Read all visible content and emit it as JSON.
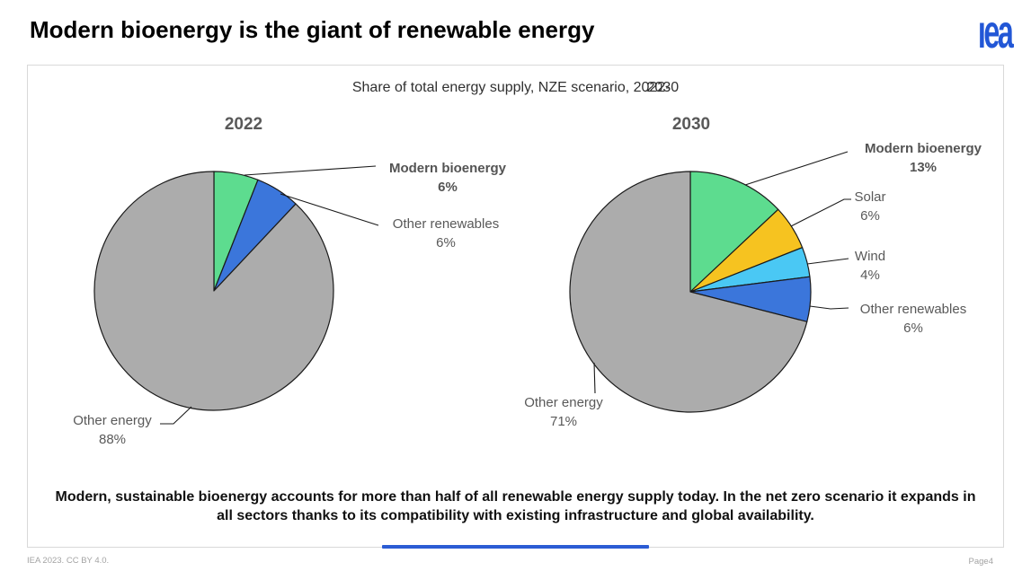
{
  "header": {
    "title": "Modern bioenergy is the giant of renewable energy",
    "logo_text": "ıea"
  },
  "chart": {
    "subtitle_part1": "Share of total energy supply, NZE scenario, 2022-",
    "subtitle_part2": "2030",
    "subtitle_full": "Share of total energy supply, NZE scenario, 2022-2030",
    "message_line1": "Modern, sustainable bioenergy accounts for more than half of all renewable energy supply today. In the net zero",
    "message_line2": "scenario it expands in all sectors thanks to its compatibility with existing infrastructure and global availability."
  },
  "chart_data": [
    {
      "type": "pie",
      "title": "2022",
      "start_angle": "12-oclock",
      "direction": "clockwise",
      "labels_position": "outside-with-leader-lines",
      "slices": [
        {
          "label": "Modern bioenergy",
          "pct_label": "6%",
          "value": 6,
          "color": "#5dDC8f",
          "emphasis": true
        },
        {
          "label": "Other renewables",
          "pct_label": "6%",
          "value": 6,
          "color": "#3b76db",
          "emphasis": false
        },
        {
          "label": "Other energy",
          "pct_label": "88%",
          "value": 88,
          "color": "#acacac",
          "emphasis": false
        }
      ]
    },
    {
      "type": "pie",
      "title": "2030",
      "start_angle": "12-oclock",
      "direction": "clockwise",
      "labels_position": "outside-with-leader-lines",
      "slices": [
        {
          "label": "Modern bioenergy",
          "pct_label": "13%",
          "value": 13,
          "color": "#5dDC8f",
          "emphasis": true
        },
        {
          "label": "Solar",
          "pct_label": "6%",
          "value": 6,
          "color": "#f6c320",
          "emphasis": false
        },
        {
          "label": "Wind",
          "pct_label": "4%",
          "value": 4,
          "color": "#4ac8f4",
          "emphasis": false
        },
        {
          "label": "Other renewables",
          "pct_label": "6%",
          "value": 6,
          "color": "#3b76db",
          "emphasis": false
        },
        {
          "label": "Other energy",
          "pct_label": "71%",
          "value": 71,
          "color": "#acacac",
          "emphasis": false
        }
      ]
    }
  ],
  "colors": {
    "accent_blue_line": "#2b5cd4",
    "logo_blue": "#2257d6",
    "slice_outline": "#1a1a1a",
    "label_gray": "#595959"
  },
  "footer": {
    "left": "IEA 2023. CC BY 4.0.",
    "right": "Page4"
  }
}
